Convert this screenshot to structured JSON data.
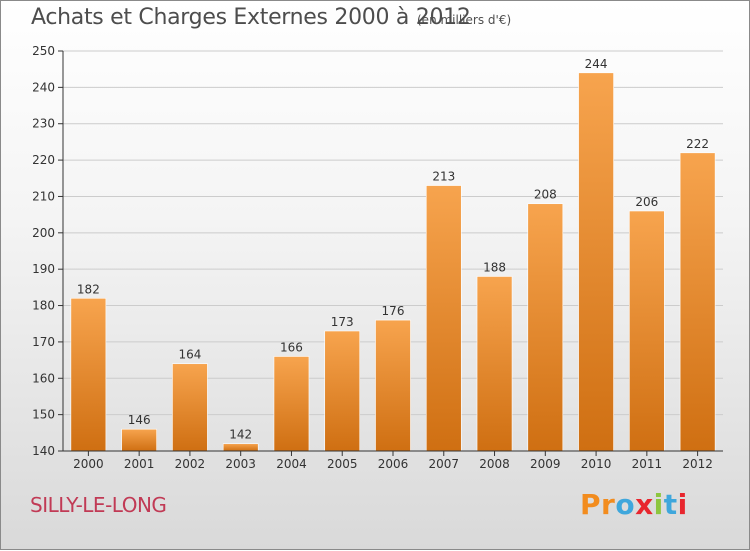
{
  "header": {
    "title": "Achats et Charges Externes 2000 à 2012",
    "subtitle": "(en milliers d'€)"
  },
  "footer": {
    "commune": "SILLY-LE-LONG",
    "logo_text": "Proxiti",
    "logo_colors": [
      "#f28c1e",
      "#f28c1e",
      "#3fa7dc",
      "#e8262e",
      "#8dc63f",
      "#3fa7dc",
      "#e8262e"
    ]
  },
  "colors": {
    "bar_light": "#f7a44e",
    "bar_dark": "#cf6f12",
    "grid": "#cccccc",
    "axis": "#333333",
    "title": "#4d4d4d",
    "commune": "#c13a55"
  },
  "chart_data": {
    "type": "bar",
    "title": "Achats et Charges Externes 2000 à 2012",
    "subtitle": "(en milliers d'€)",
    "xlabel": "",
    "ylabel": "",
    "categories": [
      "2000",
      "2001",
      "2002",
      "2003",
      "2004",
      "2005",
      "2006",
      "2007",
      "2008",
      "2009",
      "2010",
      "2011",
      "2012"
    ],
    "values": [
      182,
      146,
      164,
      142,
      166,
      173,
      176,
      213,
      188,
      208,
      244,
      206,
      222
    ],
    "ylim": [
      140,
      250
    ],
    "yticks": [
      140,
      150,
      160,
      170,
      180,
      190,
      200,
      210,
      220,
      230,
      240,
      250
    ],
    "grid": true,
    "legend": "none"
  }
}
